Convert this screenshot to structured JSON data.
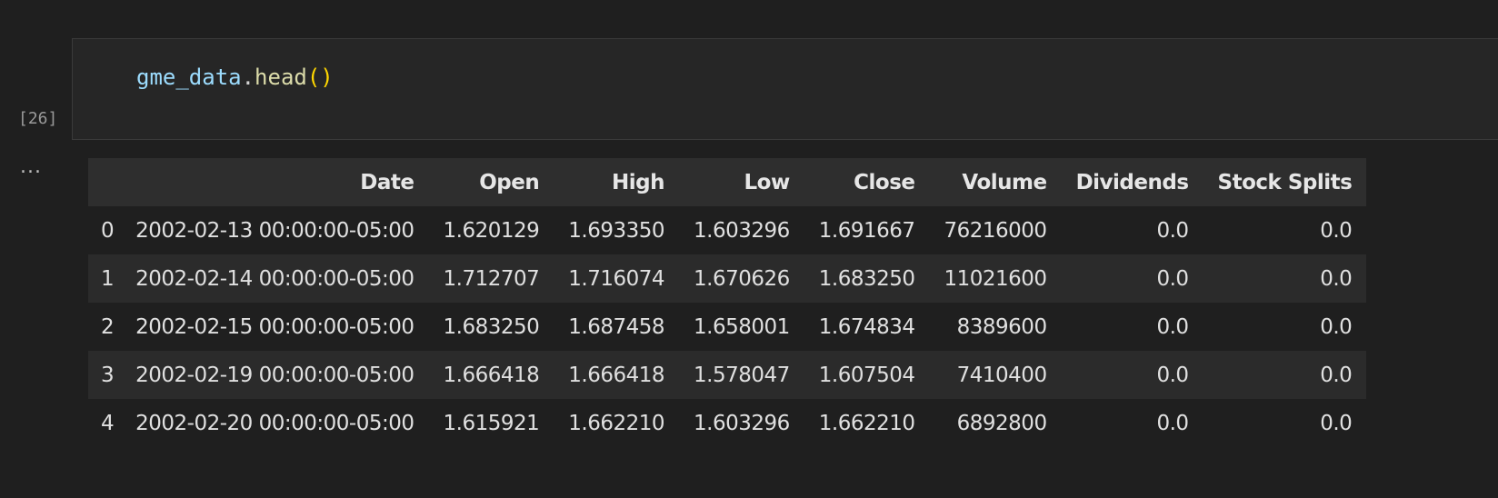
{
  "cell": {
    "code": {
      "var": "gme_data",
      "dot": ".",
      "func": "head",
      "parens": "()"
    },
    "execution_count": "[26]",
    "output_menu": "..."
  },
  "table": {
    "index_header": "",
    "columns": [
      "Date",
      "Open",
      "High",
      "Low",
      "Close",
      "Volume",
      "Dividends",
      "Stock Splits"
    ],
    "rows": [
      {
        "index": "0",
        "cells": [
          "2002-02-13 00:00:00-05:00",
          "1.620129",
          "1.693350",
          "1.603296",
          "1.691667",
          "76216000",
          "0.0",
          "0.0"
        ]
      },
      {
        "index": "1",
        "cells": [
          "2002-02-14 00:00:00-05:00",
          "1.712707",
          "1.716074",
          "1.670626",
          "1.683250",
          "11021600",
          "0.0",
          "0.0"
        ]
      },
      {
        "index": "2",
        "cells": [
          "2002-02-15 00:00:00-05:00",
          "1.683250",
          "1.687458",
          "1.658001",
          "1.674834",
          "8389600",
          "0.0",
          "0.0"
        ]
      },
      {
        "index": "3",
        "cells": [
          "2002-02-19 00:00:00-05:00",
          "1.666418",
          "1.666418",
          "1.578047",
          "1.607504",
          "7410400",
          "0.0",
          "0.0"
        ]
      },
      {
        "index": "4",
        "cells": [
          "2002-02-20 00:00:00-05:00",
          "1.615921",
          "1.662210",
          "1.603296",
          "1.662210",
          "6892800",
          "0.0",
          "0.0"
        ]
      }
    ]
  }
}
